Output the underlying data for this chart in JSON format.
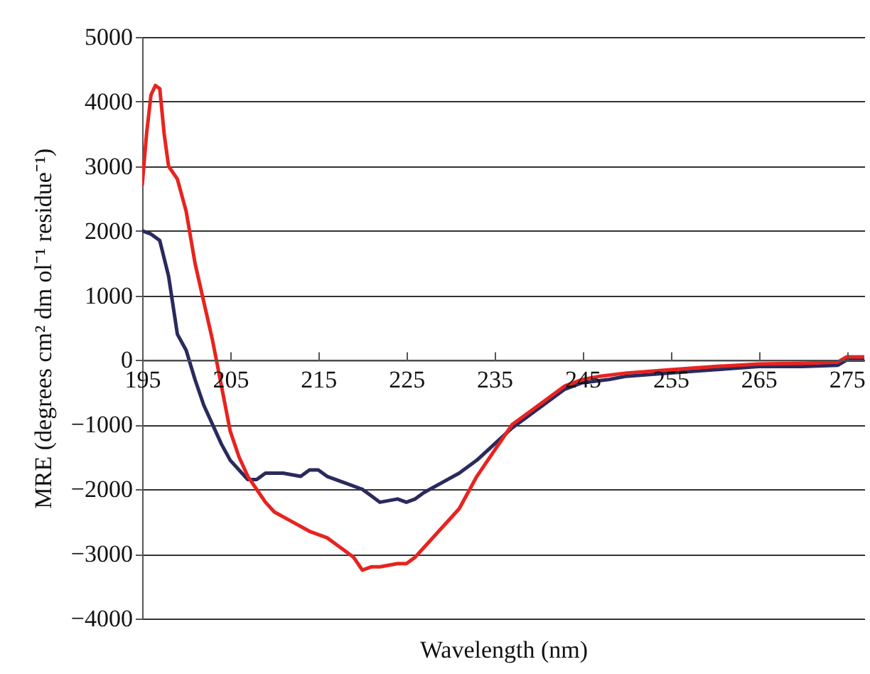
{
  "chart_data": {
    "type": "line",
    "xlabel": "Wavelength (nm)",
    "ylabel": "MRE (degrees cm² dm ol⁻¹ residue⁻¹)",
    "xlim": [
      195,
      277
    ],
    "xticks": [
      195,
      205,
      215,
      225,
      235,
      245,
      255,
      265,
      275
    ],
    "ylim": [
      -4000,
      5000
    ],
    "yticks": [
      {
        "value": -4000,
        "label": "−4000"
      },
      {
        "value": -3000,
        "label": "−3000"
      },
      {
        "value": -2000,
        "label": "−2000"
      },
      {
        "value": -1000,
        "label": "−1000"
      },
      0,
      1000,
      2000,
      3000,
      4000,
      5000
    ],
    "grid": "y",
    "legend": false,
    "marker": "none",
    "line_style": "solid",
    "series": [
      {
        "color": "#2a2a5e",
        "x": [
          195,
          196,
          197,
          198,
          199,
          200,
          201,
          202,
          203,
          204,
          205,
          206,
          207,
          208,
          209,
          211,
          213,
          214,
          215,
          216,
          218,
          220,
          221,
          222,
          224,
          225,
          226,
          227,
          229,
          231,
          233,
          235,
          237,
          239,
          241,
          243,
          245,
          248,
          250,
          255,
          260,
          265,
          270,
          274,
          275,
          277
        ],
        "values": [
          2000,
          1950,
          1850,
          1300,
          400,
          150,
          -300,
          -700,
          -1000,
          -1300,
          -1550,
          -1700,
          -1850,
          -1850,
          -1750,
          -1750,
          -1800,
          -1700,
          -1700,
          -1800,
          -1900,
          -2000,
          -2100,
          -2200,
          -2150,
          -2200,
          -2150,
          -2050,
          -1900,
          -1750,
          -1550,
          -1300,
          -1050,
          -850,
          -650,
          -450,
          -350,
          -300,
          -250,
          -200,
          -150,
          -100,
          -100,
          -80,
          0,
          0
        ]
      },
      {
        "color": "#e8231f",
        "x": [
          195,
          195.5,
          196,
          196.5,
          197,
          197.5,
          198,
          199,
          200,
          201,
          202,
          203,
          204,
          205,
          206,
          207,
          208,
          209,
          210,
          212,
          214,
          216,
          218,
          219,
          220,
          221,
          222,
          224,
          225,
          226,
          227,
          229,
          231,
          233,
          235,
          236,
          237,
          239,
          241,
          243,
          245,
          247,
          250,
          255,
          260,
          265,
          270,
          274,
          275,
          277
        ],
        "values": [
          2700,
          3500,
          4100,
          4250,
          4200,
          3500,
          3000,
          2800,
          2300,
          1500,
          900,
          300,
          -400,
          -1100,
          -1500,
          -1800,
          -2000,
          -2200,
          -2350,
          -2500,
          -2650,
          -2750,
          -2950,
          -3050,
          -3250,
          -3200,
          -3200,
          -3150,
          -3150,
          -3050,
          -2900,
          -2600,
          -2300,
          -1800,
          -1400,
          -1200,
          -1000,
          -800,
          -600,
          -400,
          -300,
          -250,
          -200,
          -150,
          -100,
          -60,
          -50,
          -30,
          50,
          50
        ]
      }
    ]
  }
}
